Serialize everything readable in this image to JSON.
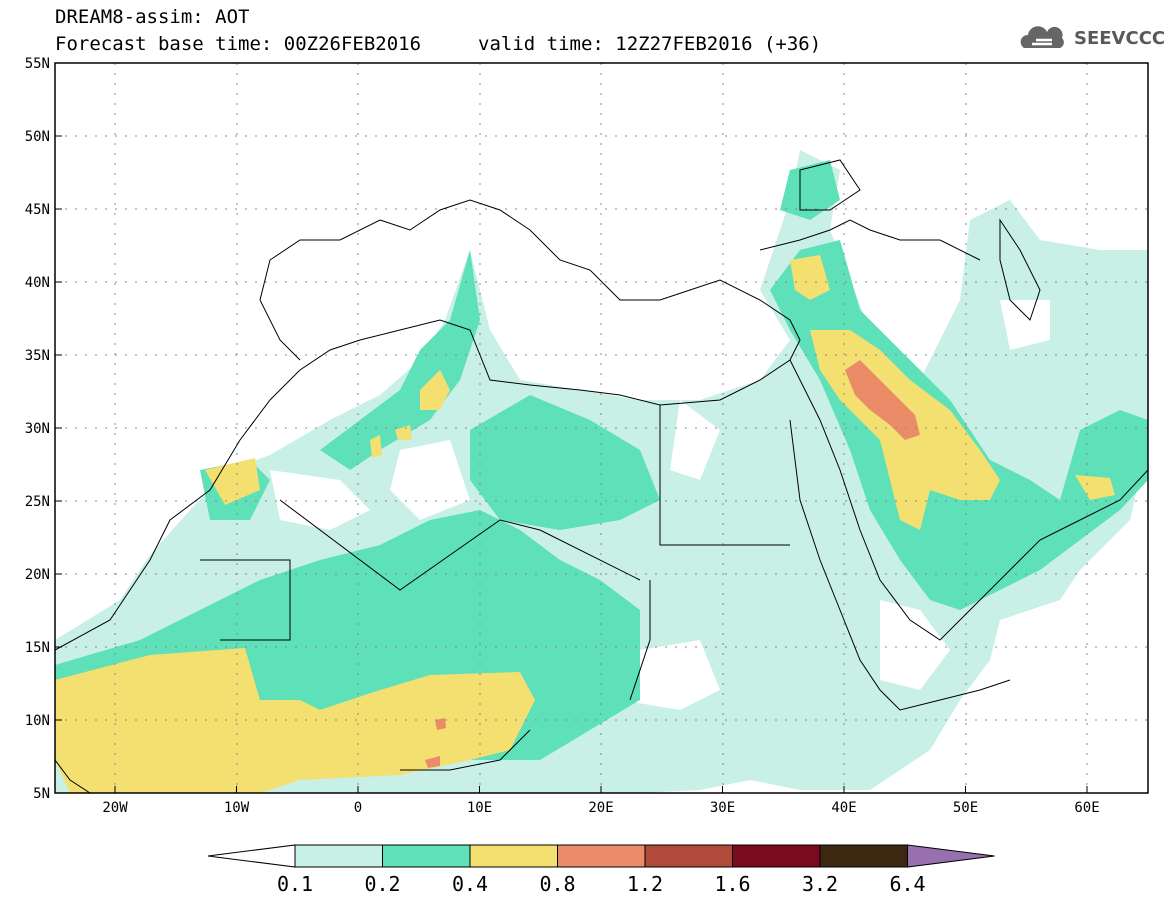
{
  "header": {
    "title": "DREAM8-assim: AOT",
    "base_time": "Forecast base time: 00Z26FEB2016",
    "valid_time": "valid time: 12Z27FEB2016 (+36)",
    "logo_text": "SEEVCCC"
  },
  "axes": {
    "lat_labels": [
      "55N",
      "50N",
      "45N",
      "40N",
      "35N",
      "30N",
      "25N",
      "20N",
      "15N",
      "10N",
      "5N"
    ],
    "lon_labels": [
      "20W",
      "10W",
      "0",
      "10E",
      "20E",
      "30E",
      "40E",
      "50E",
      "60E"
    ]
  },
  "colorbar": {
    "labels": [
      "0.1",
      "0.2",
      "0.4",
      "0.8",
      "1.2",
      "1.6",
      "3.2",
      "6.4"
    ],
    "colors": [
      "#ffffff",
      "#c8f0e6",
      "#5ee0b8",
      "#f4e070",
      "#ea8c68",
      "#b04a3a",
      "#7a0a20",
      "#3c2810",
      "#9870b0"
    ]
  },
  "map": {
    "colors": {
      "c01": "#c8f0e6",
      "c02": "#5ee0b8",
      "c04": "#f4e070",
      "c08": "#ea8c68"
    }
  }
}
